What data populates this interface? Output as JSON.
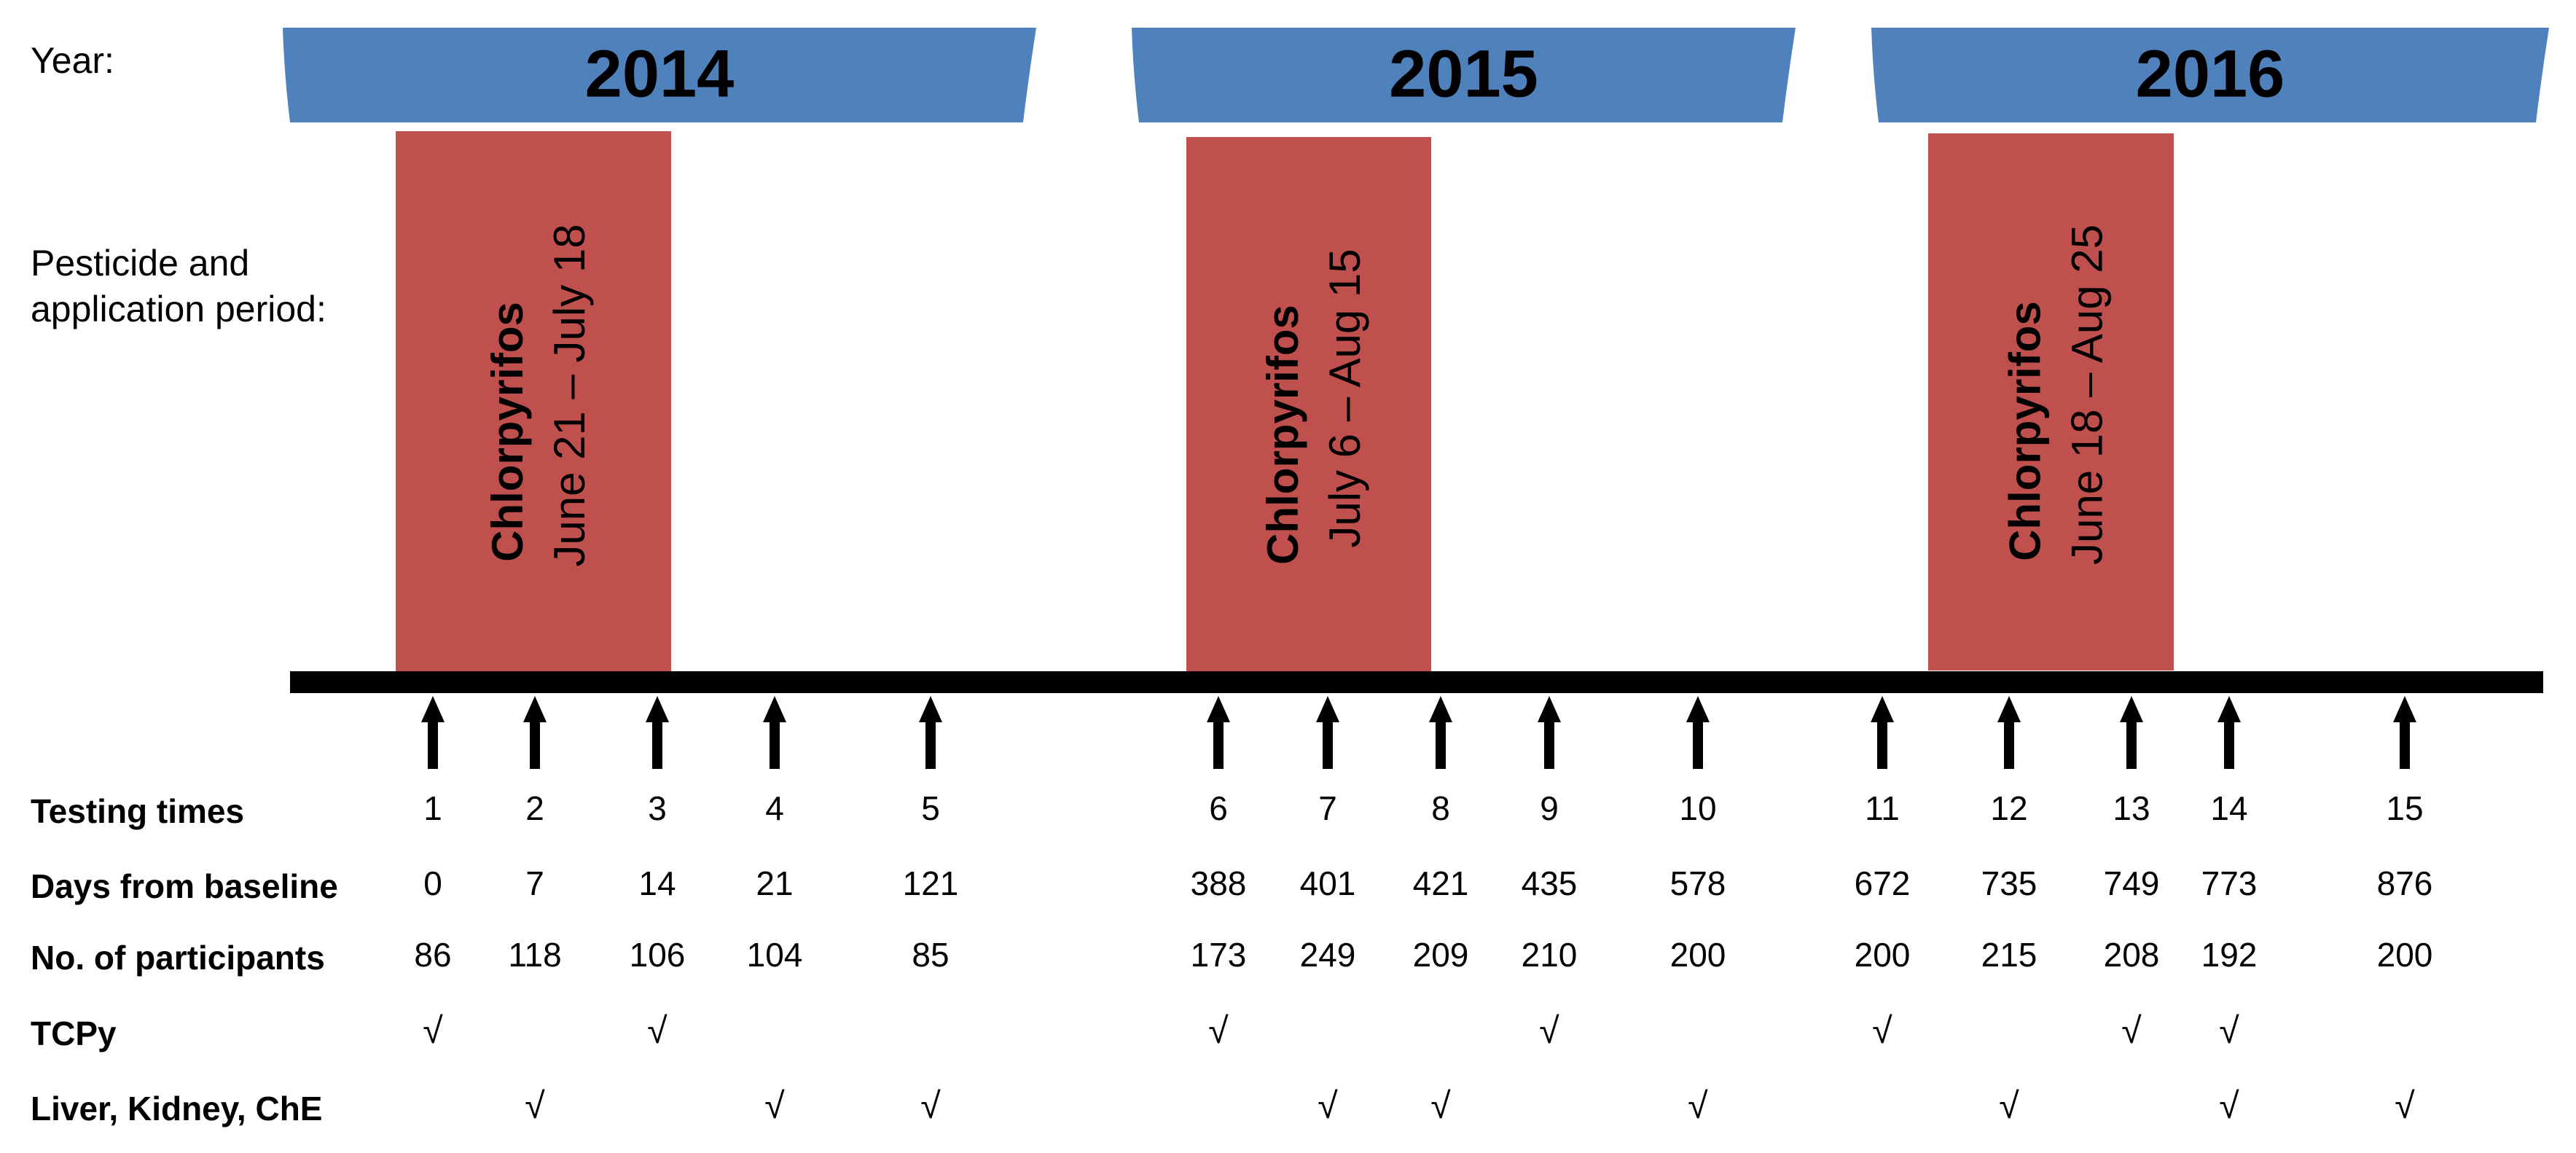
{
  "labels": {
    "year": "Year:",
    "pesticide_line1": "Pesticide and",
    "pesticide_line2": "application period:"
  },
  "years": [
    "2014",
    "2015",
    "2016"
  ],
  "periods": [
    {
      "pesticide": "Chlorpyrifos",
      "dates": "June 21 – July 18"
    },
    {
      "pesticide": "Chlorpyrifos",
      "dates": "July 6 – Aug 15"
    },
    {
      "pesticide": "Chlorpyrifos",
      "dates": "June 18 – Aug 25"
    }
  ],
  "rows": {
    "testing_times": "Testing times",
    "days": "Days from baseline",
    "participants": "No. of participants",
    "tcpy": "TCPy",
    "liver": "Liver, Kidney, ChE"
  },
  "check_mark": "√",
  "testing": [
    {
      "time": "1",
      "days": "0",
      "participants": "86",
      "tcpy": true,
      "liver": false
    },
    {
      "time": "2",
      "days": "7",
      "participants": "118",
      "tcpy": false,
      "liver": true
    },
    {
      "time": "3",
      "days": "14",
      "participants": "106",
      "tcpy": true,
      "liver": false
    },
    {
      "time": "4",
      "days": "21",
      "participants": "104",
      "tcpy": false,
      "liver": true
    },
    {
      "time": "5",
      "days": "121",
      "participants": "85",
      "tcpy": false,
      "liver": true
    },
    {
      "time": "6",
      "days": "388",
      "participants": "173",
      "tcpy": true,
      "liver": false
    },
    {
      "time": "7",
      "days": "401",
      "participants": "249",
      "tcpy": false,
      "liver": true
    },
    {
      "time": "8",
      "days": "421",
      "participants": "209",
      "tcpy": false,
      "liver": true
    },
    {
      "time": "9",
      "days": "435",
      "participants": "210",
      "tcpy": true,
      "liver": false
    },
    {
      "time": "10",
      "days": "578",
      "participants": "200",
      "tcpy": false,
      "liver": true
    },
    {
      "time": "11",
      "days": "672",
      "participants": "200",
      "tcpy": true,
      "liver": false
    },
    {
      "time": "12",
      "days": "735",
      "participants": "215",
      "tcpy": false,
      "liver": true
    },
    {
      "time": "13",
      "days": "749",
      "participants": "208",
      "tcpy": true,
      "liver": false
    },
    {
      "time": "14",
      "days": "773",
      "participants": "192",
      "tcpy": true,
      "liver": true
    },
    {
      "time": "15",
      "days": "876",
      "participants": "200",
      "tcpy": false,
      "liver": true
    }
  ],
  "colors": {
    "year_bar": "#4f81bd",
    "period_box": "#c0504d",
    "timeline": "#000000",
    "text": "#000000"
  }
}
